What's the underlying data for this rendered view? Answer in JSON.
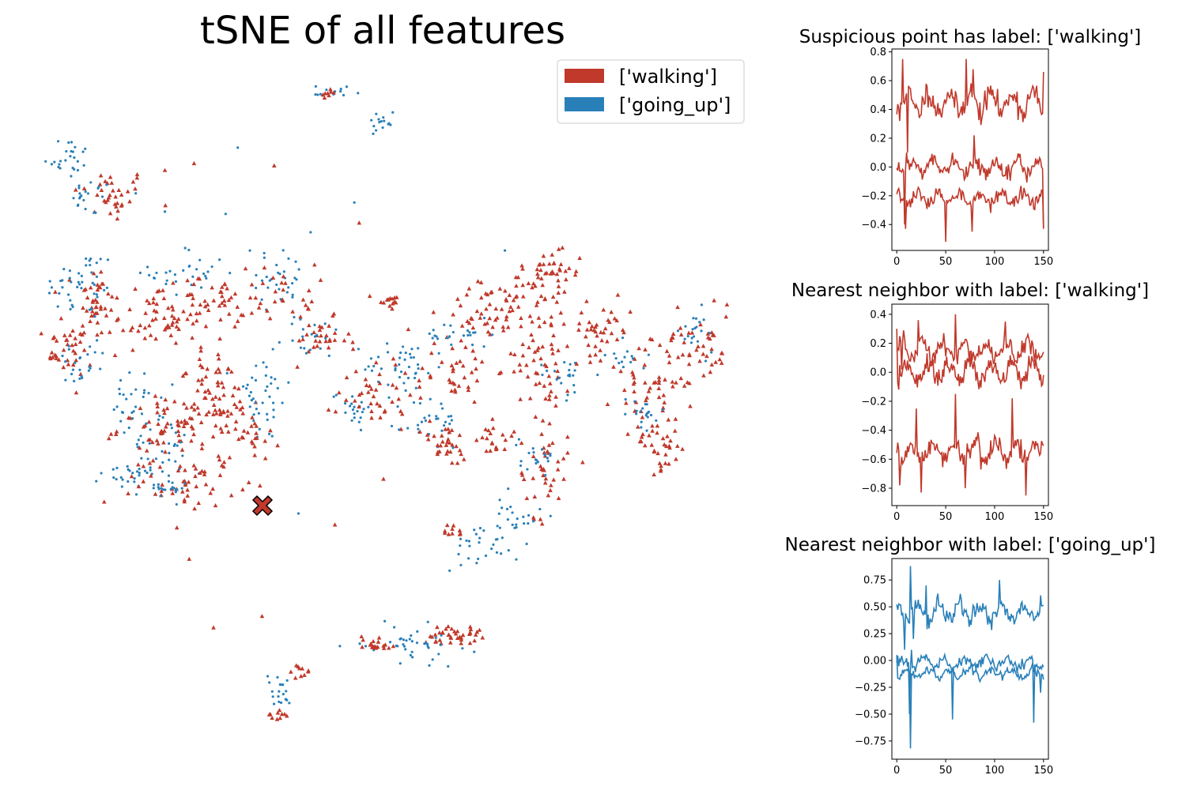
{
  "colors": {
    "walking": "#c0392b",
    "going_up": "#2980b9"
  },
  "chart_data": [
    {
      "type": "scatter",
      "title": "tSNE of all features",
      "axes_visible": false,
      "legend": {
        "placement": "top-right",
        "entries": [
          {
            "label": "['walking']",
            "color": "#c0392b",
            "marker": "triangle"
          },
          {
            "label": "['going_up']",
            "color": "#2980b9",
            "marker": "dot"
          }
        ]
      },
      "highlight": {
        "name": "suspicious point",
        "marker": "X",
        "color": "#c0392b",
        "edge": "#000000"
      },
      "clusters": [
        {
          "x": -72,
          "y": 64,
          "spread": [
            8,
            6
          ],
          "n": 35,
          "label": "walking"
        },
        {
          "x": -80,
          "y": 63,
          "spread": [
            4,
            4
          ],
          "n": 20,
          "label": "going_up"
        },
        {
          "x": -90,
          "y": 81,
          "spread": [
            5,
            5
          ],
          "n": 25,
          "label": "going_up"
        },
        {
          "x": -79,
          "y": 18,
          "spread": [
            4,
            8
          ],
          "n": 40,
          "label": "walking"
        },
        {
          "x": -85,
          "y": 25,
          "spread": [
            8,
            8
          ],
          "n": 45,
          "label": "going_up"
        },
        {
          "x": -40,
          "y": 14,
          "spread": [
            9,
            9
          ],
          "n": 45,
          "label": "walking"
        },
        {
          "x": -58,
          "y": 8,
          "spread": [
            8,
            6
          ],
          "n": 35,
          "label": "walking"
        },
        {
          "x": -25,
          "y": 18,
          "spread": [
            6,
            6
          ],
          "n": 25,
          "label": "walking"
        },
        {
          "x": -40,
          "y": 30,
          "spread": [
            8,
            6
          ],
          "n": 30,
          "label": "going_up"
        },
        {
          "x": -3,
          "y": 28,
          "spread": [
            7,
            6
          ],
          "n": 30,
          "label": "going_up"
        },
        {
          "x": 0,
          "y": 22,
          "spread": [
            6,
            6
          ],
          "n": 25,
          "label": "walking"
        },
        {
          "x": -92,
          "y": -5,
          "spread": [
            6,
            6
          ],
          "n": 40,
          "label": "walking"
        },
        {
          "x": -85,
          "y": -10,
          "spread": [
            6,
            6
          ],
          "n": 25,
          "label": "going_up"
        },
        {
          "x": -45,
          "y": -38,
          "spread": [
            12,
            6
          ],
          "n": 70,
          "label": "walking"
        },
        {
          "x": -28,
          "y": -28,
          "spread": [
            8,
            8
          ],
          "n": 45,
          "label": "walking"
        },
        {
          "x": -62,
          "y": -28,
          "spread": [
            5,
            7
          ],
          "n": 30,
          "label": "going_up"
        },
        {
          "x": -52,
          "y": -45,
          "spread": [
            6,
            6
          ],
          "n": 25,
          "label": "going_up"
        },
        {
          "x": -60,
          "y": -57,
          "spread": [
            8,
            4
          ],
          "n": 30,
          "label": "going_up"
        },
        {
          "x": -40,
          "y": -62,
          "spread": [
            10,
            5
          ],
          "n": 50,
          "label": "walking"
        },
        {
          "x": -52,
          "y": -65,
          "spread": [
            5,
            2
          ],
          "n": 20,
          "label": "going_up"
        },
        {
          "x": -10,
          "y": -25,
          "spread": [
            6,
            10
          ],
          "n": 40,
          "label": "going_up"
        },
        {
          "x": -15,
          "y": -40,
          "spread": [
            6,
            6
          ],
          "n": 25,
          "label": "walking"
        },
        {
          "x": -30,
          "y": -12,
          "spread": [
            5,
            4
          ],
          "n": 20,
          "label": "walking"
        },
        {
          "x": 14,
          "y": 0,
          "spread": [
            6,
            5
          ],
          "n": 30,
          "label": "walking"
        },
        {
          "x": 10,
          "y": 2,
          "spread": [
            6,
            5
          ],
          "n": 20,
          "label": "going_up"
        },
        {
          "x": 42,
          "y": 18,
          "spread": [
            3,
            2
          ],
          "n": 15,
          "label": "walking"
        },
        {
          "x": 27,
          "y": -28,
          "spread": [
            4,
            4
          ],
          "n": 20,
          "label": "going_up"
        },
        {
          "x": 37,
          "y": -22,
          "spread": [
            8,
            8
          ],
          "n": 40,
          "label": "walking"
        },
        {
          "x": 48,
          "y": -11,
          "spread": [
            8,
            6
          ],
          "n": 40,
          "label": "going_up"
        },
        {
          "x": 70,
          "y": -12,
          "spread": [
            8,
            8
          ],
          "n": 40,
          "label": "walking"
        },
        {
          "x": 60,
          "y": -35,
          "spread": [
            6,
            6
          ],
          "n": 30,
          "label": "going_up"
        },
        {
          "x": 65,
          "y": -45,
          "spread": [
            5,
            5
          ],
          "n": 30,
          "label": "walking"
        },
        {
          "x": 85,
          "y": 14,
          "spread": [
            10,
            6
          ],
          "n": 50,
          "label": "walking"
        },
        {
          "x": 104,
          "y": 24,
          "spread": [
            6,
            6
          ],
          "n": 35,
          "label": "walking"
        },
        {
          "x": 106,
          "y": -6,
          "spread": [
            6,
            14
          ],
          "n": 60,
          "label": "walking"
        },
        {
          "x": 114,
          "y": -14,
          "spread": [
            5,
            5
          ],
          "n": 20,
          "label": "going_up"
        },
        {
          "x": 106,
          "y": -57,
          "spread": [
            5,
            10
          ],
          "n": 40,
          "label": "walking"
        },
        {
          "x": 104,
          "y": -49,
          "spread": [
            4,
            4
          ],
          "n": 20,
          "label": "going_up"
        },
        {
          "x": 86,
          "y": -43,
          "spread": [
            4,
            4
          ],
          "n": 20,
          "label": "walking"
        },
        {
          "x": 130,
          "y": 5,
          "spread": [
            6,
            6
          ],
          "n": 40,
          "label": "walking"
        },
        {
          "x": 148,
          "y": -18,
          "spread": [
            8,
            8
          ],
          "n": 40,
          "label": "walking"
        },
        {
          "x": 154,
          "y": -44,
          "spread": [
            6,
            6
          ],
          "n": 40,
          "label": "walking"
        },
        {
          "x": 146,
          "y": -33,
          "spread": [
            5,
            5
          ],
          "n": 20,
          "label": "going_up"
        },
        {
          "x": 170,
          "y": 0,
          "spread": [
            8,
            10
          ],
          "n": 50,
          "label": "walking"
        },
        {
          "x": 168,
          "y": 3,
          "spread": [
            5,
            5
          ],
          "n": 20,
          "label": "going_up"
        },
        {
          "x": 140,
          "y": -7,
          "spread": [
            4,
            4
          ],
          "n": 15,
          "label": "going_up"
        },
        {
          "x": 113,
          "y": 35,
          "spread": [
            4,
            5
          ],
          "n": 20,
          "label": "walking"
        },
        {
          "x": 18,
          "y": 109,
          "spread": [
            4,
            2
          ],
          "n": 15,
          "label": "going_up"
        },
        {
          "x": 17,
          "y": 108,
          "spread": [
            2,
            1
          ],
          "n": 8,
          "label": "walking"
        },
        {
          "x": 40,
          "y": 95,
          "spread": [
            4,
            3
          ],
          "n": 15,
          "label": "going_up"
        },
        {
          "x": 71,
          "y": 3,
          "spread": [
            7,
            3
          ],
          "n": 25,
          "label": "going_up"
        },
        {
          "x": 80,
          "y": -89,
          "spread": [
            8,
            5
          ],
          "n": 30,
          "label": "going_up"
        },
        {
          "x": 69,
          "y": -83,
          "spread": [
            2,
            2
          ],
          "n": 10,
          "label": "walking"
        },
        {
          "x": 96,
          "y": -76,
          "spread": [
            5,
            5
          ],
          "n": 20,
          "label": "going_up"
        },
        {
          "x": 68,
          "y": -128,
          "spread": [
            6,
            2
          ],
          "n": 40,
          "label": "walking"
        },
        {
          "x": 52,
          "y": -132,
          "spread": [
            10,
            4
          ],
          "n": 40,
          "label": "going_up"
        },
        {
          "x": 37,
          "y": -132,
          "spread": [
            4,
            2
          ],
          "n": 20,
          "label": "walking"
        },
        {
          "x": 6,
          "y": -145,
          "spread": [
            2,
            2
          ],
          "n": 10,
          "label": "walking"
        },
        {
          "x": -4,
          "y": -152,
          "spread": [
            3,
            4
          ],
          "n": 20,
          "label": "going_up"
        },
        {
          "x": -3,
          "y": -164,
          "spread": [
            2,
            1
          ],
          "n": 10,
          "label": "walking"
        }
      ]
    },
    {
      "type": "line",
      "title": "Suspicious point has label: ['walking']",
      "xlim": [
        -5,
        155
      ],
      "ylim": [
        -0.58,
        0.82
      ],
      "xticks": [
        0,
        50,
        100,
        150
      ],
      "yticks": [
        -0.4,
        -0.2,
        0.0,
        0.2,
        0.4,
        0.6,
        0.8
      ],
      "ytick_labels": [
        "−0.4",
        "−0.2",
        "0.0",
        "0.2",
        "0.4",
        "0.6",
        "0.8"
      ],
      "color": "#c0392b",
      "series": [
        {
          "base": 0.45,
          "amp": 0.12,
          "spikes": [
            [
              6,
              0.75
            ],
            [
              78,
              0.68
            ],
            [
              71,
              0.75
            ],
            [
              150,
              0.66
            ]
          ],
          "dips": [
            [
              3,
              0.32
            ],
            [
              11,
              0.1
            ]
          ],
          "seed": 11
        },
        {
          "base": 0.0,
          "amp": 0.07,
          "spikes": [
            [
              10,
              0.1
            ],
            [
              79,
              0.22
            ]
          ],
          "dips": [
            [
              8,
              -0.4
            ],
            [
              150,
              -0.42
            ]
          ],
          "seed": 22
        },
        {
          "base": -0.22,
          "amp": 0.06,
          "spikes": [
            [
              2,
              -0.15
            ]
          ],
          "dips": [
            [
              9,
              -0.43
            ],
            [
              50,
              -0.52
            ],
            [
              77,
              -0.45
            ],
            [
              150,
              -0.43
            ]
          ],
          "seed": 33
        }
      ]
    },
    {
      "type": "line",
      "title": "Nearest neighbor with label: ['walking']",
      "xlim": [
        -5,
        155
      ],
      "ylim": [
        -0.92,
        0.47
      ],
      "xticks": [
        0,
        50,
        100,
        150
      ],
      "yticks": [
        -0.8,
        -0.6,
        -0.4,
        -0.2,
        0.0,
        0.2,
        0.4
      ],
      "ytick_labels": [
        "−0.8",
        "−0.6",
        "−0.4",
        "−0.2",
        "0.0",
        "0.2",
        "0.4"
      ],
      "color": "#c0392b",
      "series": [
        {
          "base": 0.15,
          "amp": 0.1,
          "spikes": [
            [
              22,
              0.36
            ],
            [
              60,
              0.4
            ],
            [
              111,
              0.35
            ]
          ],
          "dips": [
            [
              5,
              0.02
            ]
          ],
          "seed": 44
        },
        {
          "base": 0.0,
          "amp": 0.1,
          "spikes": [
            [
              0,
              0.3
            ]
          ],
          "dips": [
            [
              2,
              -0.12
            ]
          ],
          "seed": 55
        },
        {
          "base": -0.55,
          "amp": 0.1,
          "spikes": [
            [
              20,
              -0.25
            ],
            [
              60,
              -0.15
            ],
            [
              118,
              -0.18
            ]
          ],
          "dips": [
            [
              3,
              -0.78
            ],
            [
              25,
              -0.83
            ],
            [
              70,
              -0.8
            ],
            [
              132,
              -0.85
            ]
          ],
          "seed": 66
        }
      ]
    },
    {
      "type": "line",
      "title": "Nearest neighbor with label: ['going_up']",
      "xlim": [
        -5,
        155
      ],
      "ylim": [
        -0.92,
        0.95
      ],
      "xticks": [
        0,
        50,
        100,
        150
      ],
      "yticks": [
        -0.75,
        -0.5,
        -0.25,
        0.0,
        0.25,
        0.5,
        0.75
      ],
      "ytick_labels": [
        "−0.75",
        "−0.50",
        "−0.25",
        "0.00",
        "0.25",
        "0.50",
        "0.75"
      ],
      "color": "#2980b9",
      "series": [
        {
          "base": 0.45,
          "amp": 0.13,
          "spikes": [
            [
              14,
              0.88
            ],
            [
              30,
              0.7
            ],
            [
              105,
              0.75
            ]
          ],
          "dips": [
            [
              8,
              0.1
            ],
            [
              17,
              0.2
            ]
          ],
          "seed": 77
        },
        {
          "base": -0.02,
          "amp": 0.07,
          "spikes": [
            [
              15,
              0.1
            ]
          ],
          "dips": [
            [
              13,
              -0.5
            ],
            [
              57,
              -0.55
            ],
            [
              140,
              -0.58
            ]
          ],
          "seed": 88
        },
        {
          "base": -0.12,
          "amp": 0.06,
          "spikes": [
            [
              0,
              0.05
            ]
          ],
          "dips": [
            [
              14,
              -0.82
            ],
            [
              147,
              -0.3
            ]
          ],
          "seed": 99
        }
      ]
    }
  ]
}
